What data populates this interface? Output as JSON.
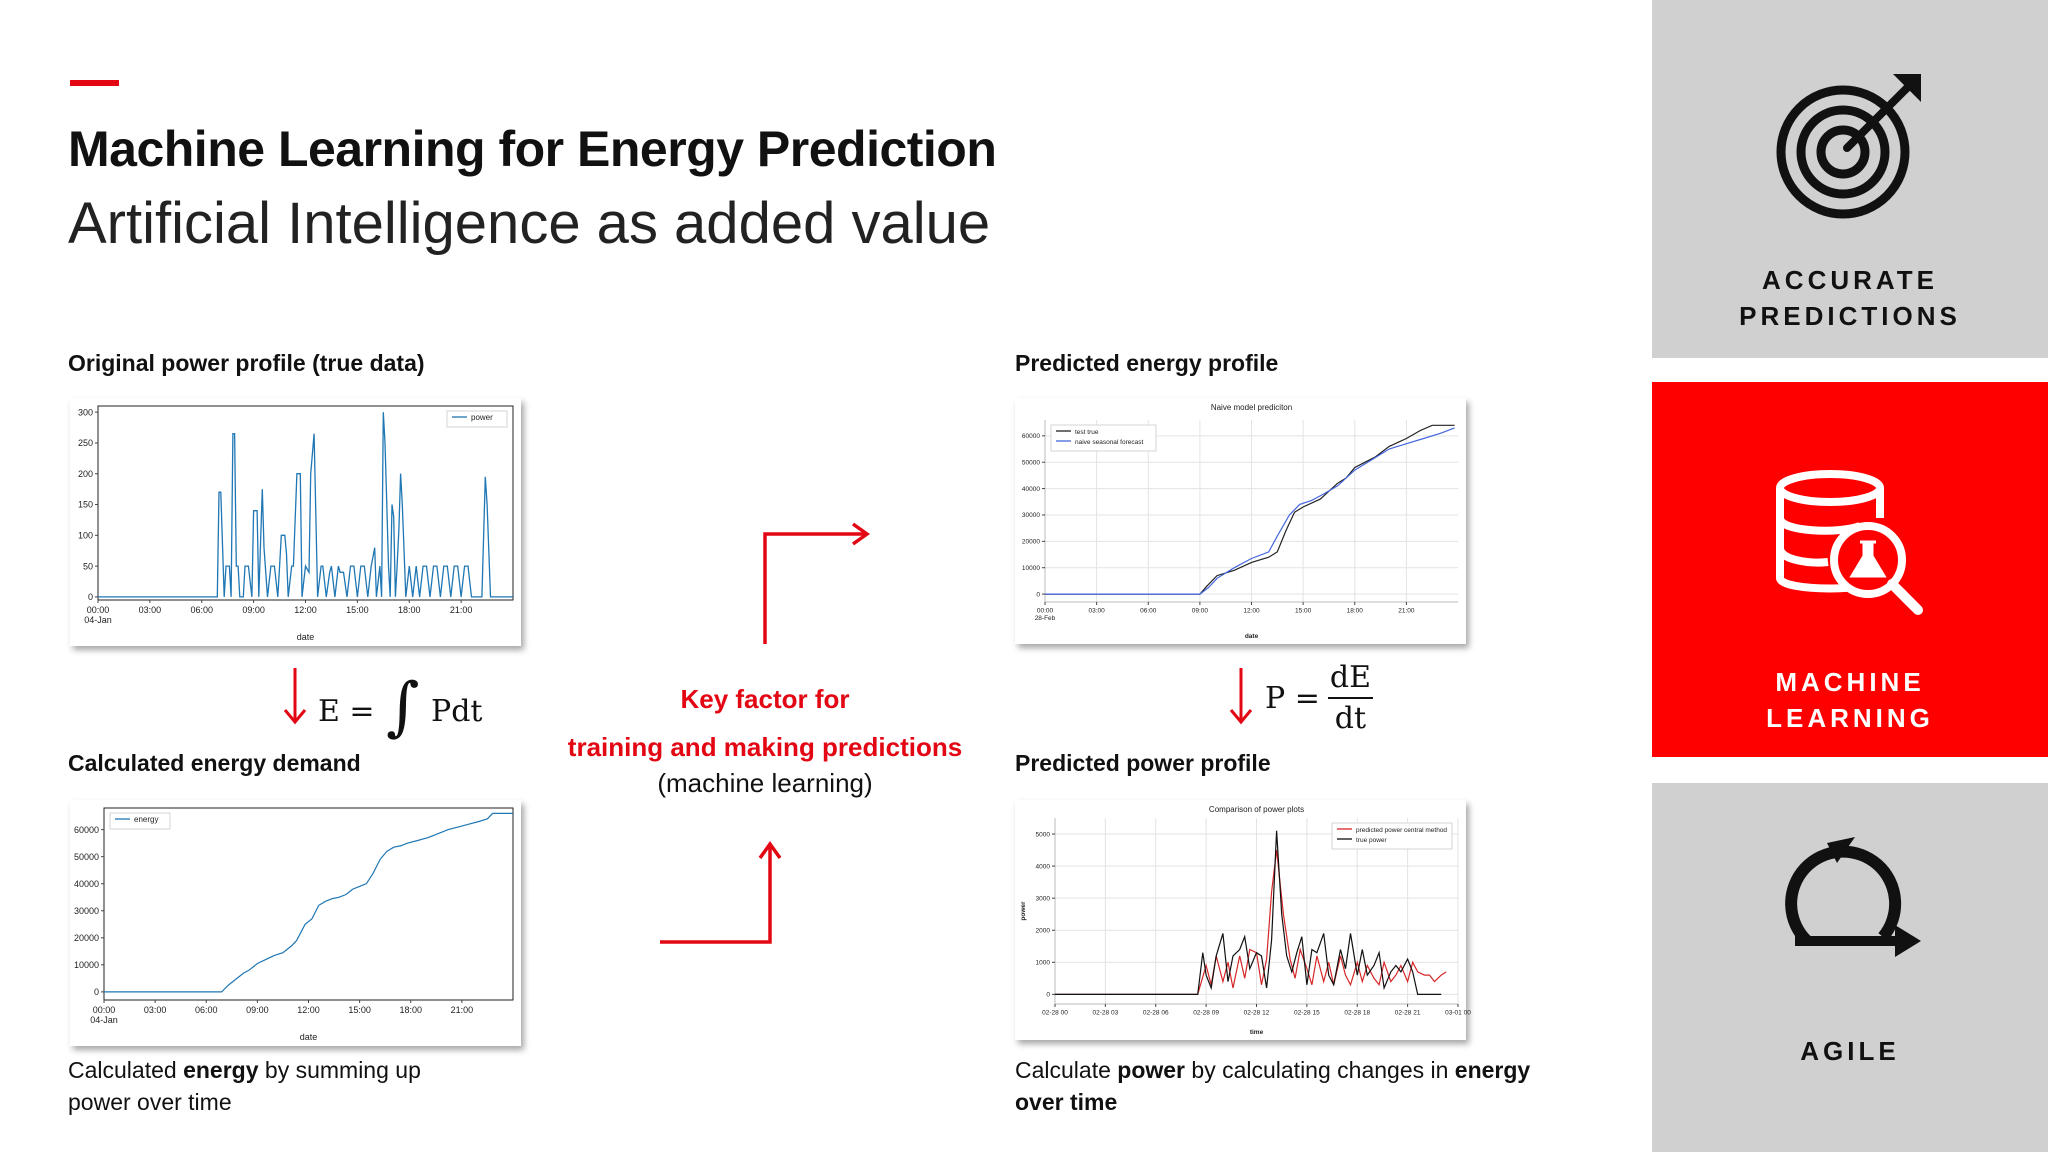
{
  "header": {
    "title": "Machine Learning for Energy Prediction",
    "subtitle": "Artificial Intelligence as added value"
  },
  "left": {
    "original_label": "Original power profile (true data)",
    "formula_lhs": "E =",
    "formula_rhs": "Pdt",
    "calculated_label": "Calculated energy demand",
    "caption_prefix": "Calculated ",
    "caption_bold": "energy",
    "caption_suffix": " by summing up",
    "caption_line2": "power over time"
  },
  "center": {
    "line1": "Key factor for",
    "line2": "training and making predictions",
    "line3": "(machine learning)"
  },
  "right": {
    "predicted_energy_label": "Predicted energy profile",
    "formula_lhs": "P =",
    "formula_num": "dE",
    "formula_den": "dt",
    "predicted_power_label": "Predicted power profile",
    "caption_prefix": "Calculate ",
    "caption_bold1": "power",
    "caption_mid": " by calculating changes in ",
    "caption_bold2": "energy",
    "caption_line2": "over time"
  },
  "side": {
    "accurate_line1": "ACCURATE",
    "accurate_line2": "PREDICTIONS",
    "ml_line1": "MACHINE",
    "ml_line2": "LEARNING",
    "agile": "AGILE",
    "icons": [
      "target-icon",
      "database-flask-icon",
      "agile-cycle-icon"
    ]
  },
  "colors": {
    "accent": "#e30613",
    "side_gray": "#d0d0d0",
    "side_red": "#ff0000",
    "plot_blue": "#1f77b4",
    "plot_red": "#d62728"
  },
  "chart_data": [
    {
      "id": "power",
      "type": "line",
      "title": "",
      "xlabel": "date",
      "ylabel": "",
      "x_ticks": [
        "00:00\n04-Jan",
        "03:00",
        "06:00",
        "09:00",
        "12:00",
        "15:00",
        "18:00",
        "21:00"
      ],
      "y_ticks": [
        0,
        50,
        100,
        150,
        200,
        250,
        300
      ],
      "ylim": [
        -5,
        310
      ],
      "xlim": [
        0,
        24
      ],
      "legend": [
        "power"
      ],
      "legend_position": "top-right",
      "series": [
        {
          "name": "power",
          "color": "#1f77b4",
          "x": [
            0,
            6.9,
            7.0,
            7.1,
            7.3,
            7.4,
            7.6,
            7.7,
            7.8,
            7.9,
            8.0,
            8.1,
            8.2,
            8.4,
            8.5,
            8.7,
            8.9,
            9.0,
            9.2,
            9.3,
            9.5,
            9.6,
            9.8,
            10.0,
            10.2,
            10.4,
            10.5,
            10.6,
            10.8,
            10.9,
            11.0,
            11.2,
            11.3,
            11.5,
            11.7,
            11.8,
            12.0,
            12.2,
            12.3,
            12.5,
            12.7,
            12.9,
            13.0,
            13.2,
            13.4,
            13.5,
            13.7,
            13.9,
            14.0,
            14.2,
            14.4,
            14.6,
            14.8,
            15.0,
            15.2,
            15.4,
            15.6,
            15.8,
            16.0,
            16.1,
            16.3,
            16.4,
            16.5,
            16.6,
            16.7,
            16.8,
            16.9,
            17.0,
            17.1,
            17.2,
            17.3,
            17.4,
            17.5,
            17.6,
            17.8,
            18.0,
            18.2,
            18.4,
            18.6,
            18.8,
            19.0,
            19.2,
            19.4,
            19.6,
            19.8,
            20.0,
            20.2,
            20.4,
            20.6,
            20.8,
            21.0,
            21.2,
            21.4,
            21.6,
            21.8,
            22.0,
            22.2,
            22.4,
            22.5,
            22.7,
            22.8,
            23.0,
            24.0
          ],
          "values": [
            0,
            0,
            170,
            170,
            0,
            50,
            50,
            0,
            265,
            265,
            50,
            50,
            0,
            0,
            50,
            50,
            0,
            140,
            140,
            0,
            175,
            80,
            0,
            50,
            50,
            0,
            50,
            100,
            100,
            70,
            0,
            50,
            50,
            200,
            200,
            0,
            50,
            40,
            200,
            265,
            0,
            50,
            50,
            0,
            40,
            50,
            0,
            50,
            40,
            40,
            0,
            50,
            50,
            0,
            50,
            50,
            0,
            50,
            80,
            0,
            50,
            0,
            300,
            250,
            150,
            50,
            0,
            150,
            130,
            0,
            50,
            110,
            200,
            150,
            0,
            50,
            0,
            50,
            0,
            50,
            50,
            0,
            50,
            50,
            0,
            50,
            50,
            0,
            50,
            50,
            0,
            50,
            50,
            0,
            0,
            0,
            0,
            195,
            150,
            0,
            0,
            0,
            0
          ]
        }
      ]
    },
    {
      "id": "energy",
      "type": "line",
      "title": "",
      "xlabel": "date",
      "ylabel": "",
      "x_ticks": [
        "00:00\n04-Jan",
        "03:00",
        "06:00",
        "09:00",
        "12:00",
        "15:00",
        "18:00",
        "21:00"
      ],
      "y_ticks": [
        0,
        10000,
        20000,
        30000,
        40000,
        50000,
        60000
      ],
      "ylim": [
        -3000,
        68000
      ],
      "xlim": [
        0,
        24
      ],
      "legend": [
        "energy"
      ],
      "legend_position": "top-left",
      "series": [
        {
          "name": "energy",
          "color": "#1f77b4",
          "x": [
            0,
            6.9,
            7.3,
            7.8,
            8.2,
            8.5,
            9.0,
            9.5,
            10.0,
            10.5,
            11.0,
            11.3,
            11.8,
            12.2,
            12.6,
            13.0,
            13.4,
            13.8,
            14.2,
            14.6,
            15.0,
            15.4,
            15.8,
            16.2,
            16.6,
            17.0,
            17.4,
            17.8,
            18.4,
            19.0,
            19.6,
            20.2,
            20.8,
            21.4,
            22.0,
            22.5,
            22.8,
            23.0,
            24.0
          ],
          "values": [
            0,
            0,
            2500,
            5000,
            7000,
            8000,
            10500,
            12000,
            13500,
            14500,
            17000,
            19000,
            25000,
            27000,
            32000,
            33500,
            34500,
            35000,
            36000,
            38000,
            39000,
            40000,
            44000,
            49000,
            52000,
            53500,
            54000,
            55000,
            56000,
            57000,
            58500,
            60000,
            61000,
            62000,
            63000,
            64000,
            66000,
            66000,
            66000
          ]
        }
      ]
    },
    {
      "id": "naive",
      "type": "line",
      "title": "Naive model prediciton",
      "xlabel": "date",
      "ylabel": "",
      "x_ticks": [
        "00:00\n28-Feb",
        "03:00",
        "06:00",
        "09:00",
        "12:00",
        "15:00",
        "18:00",
        "21:00"
      ],
      "y_ticks": [
        0,
        10000,
        20000,
        30000,
        40000,
        50000,
        60000
      ],
      "ylim": [
        -3000,
        66000
      ],
      "xlim": [
        0,
        24
      ],
      "legend": [
        "test true",
        "naive seasonal forecast"
      ],
      "legend_position": "top-left",
      "series": [
        {
          "name": "test true",
          "color": "#222222",
          "x": [
            0,
            9.0,
            9.4,
            10.0,
            11.0,
            12.0,
            13.0,
            13.5,
            14.0,
            14.5,
            15.0,
            16.0,
            17.0,
            17.5,
            18.0,
            18.6,
            19.2,
            20.0,
            21.0,
            21.8,
            22.5,
            23.0,
            23.8
          ],
          "values": [
            0,
            0,
            3000,
            7000,
            9000,
            12000,
            14000,
            16000,
            24000,
            31000,
            33000,
            36000,
            42000,
            44000,
            48000,
            50000,
            52000,
            56000,
            59000,
            62000,
            64000,
            64000,
            64000
          ]
        },
        {
          "name": "naive seasonal forecast",
          "color": "#4466dd",
          "x": [
            0,
            9.0,
            9.5,
            10.0,
            11.0,
            12.0,
            13.0,
            13.5,
            14.2,
            14.8,
            15.5,
            16.2,
            17.0,
            18.0,
            19.0,
            20.0,
            21.0,
            22.0,
            23.0,
            23.8
          ],
          "values": [
            0,
            0,
            2500,
            6000,
            10000,
            13500,
            16000,
            22000,
            30000,
            34000,
            35500,
            38000,
            41000,
            47000,
            51000,
            55000,
            57000,
            59000,
            61000,
            63000
          ]
        }
      ]
    },
    {
      "id": "compare",
      "type": "line",
      "title": "Comparison of power plots",
      "xlabel": "time",
      "ylabel": "power",
      "x_ticks": [
        "02-28 00",
        "02-28 03",
        "02-28 06",
        "02-28 09",
        "02-28 12",
        "02-28 15",
        "02-28 18",
        "02-28 21",
        "03-01 00"
      ],
      "y_ticks": [
        0,
        1000,
        2000,
        3000,
        4000,
        5000
      ],
      "ylim": [
        -300,
        5500
      ],
      "xlim": [
        0,
        24
      ],
      "legend": [
        "predicted power central method",
        "true power"
      ],
      "legend_position": "top-right",
      "series": [
        {
          "name": "predicted power central method",
          "color": "#d62728",
          "x": [
            0,
            8.5,
            9.0,
            9.3,
            9.6,
            10.0,
            10.3,
            10.6,
            11.0,
            11.3,
            11.6,
            12.0,
            12.3,
            12.6,
            12.9,
            13.2,
            13.6,
            14.0,
            14.3,
            14.6,
            15.0,
            15.3,
            15.6,
            16.0,
            16.3,
            16.6,
            17.0,
            17.3,
            17.6,
            18.0,
            18.3,
            18.6,
            19.0,
            19.3,
            19.6,
            20.0,
            20.3,
            20.6,
            21.0,
            21.3,
            21.6,
            22.0,
            22.3,
            22.6,
            23.0,
            23.3
          ],
          "values": [
            0,
            0,
            900,
            300,
            1200,
            400,
            1000,
            200,
            1200,
            500,
            1400,
            1300,
            300,
            1100,
            3200,
            4500,
            2500,
            1100,
            500,
            1400,
            800,
            300,
            1200,
            400,
            1000,
            300,
            1200,
            600,
            300,
            1000,
            400,
            900,
            500,
            300,
            1000,
            400,
            600,
            900,
            400,
            1000,
            700,
            600,
            600,
            400,
            600,
            700
          ]
        },
        {
          "name": "true power",
          "color": "#111111",
          "x": [
            0,
            8.5,
            8.8,
            9.0,
            9.3,
            9.6,
            10.0,
            10.3,
            10.6,
            11.0,
            11.3,
            11.6,
            12.0,
            12.3,
            12.6,
            12.9,
            13.2,
            13.5,
            13.8,
            14.1,
            14.4,
            14.7,
            15.0,
            15.3,
            15.6,
            16.0,
            16.3,
            16.6,
            17.0,
            17.3,
            17.6,
            18.0,
            18.3,
            18.6,
            19.0,
            19.3,
            19.6,
            20.0,
            20.3,
            20.6,
            21.0,
            21.3,
            21.6,
            22.0,
            22.3,
            22.6,
            23.0
          ],
          "values": [
            0,
            0,
            1300,
            600,
            200,
            1200,
            1900,
            400,
            1200,
            1400,
            1800,
            800,
            1300,
            1200,
            200,
            1700,
            5100,
            2500,
            1200,
            700,
            1300,
            1800,
            300,
            1400,
            1300,
            1900,
            600,
            300,
            1400,
            800,
            1900,
            600,
            1400,
            600,
            900,
            1300,
            200,
            700,
            900,
            700,
            1100,
            700,
            0,
            0,
            0,
            0,
            0
          ]
        }
      ]
    }
  ]
}
